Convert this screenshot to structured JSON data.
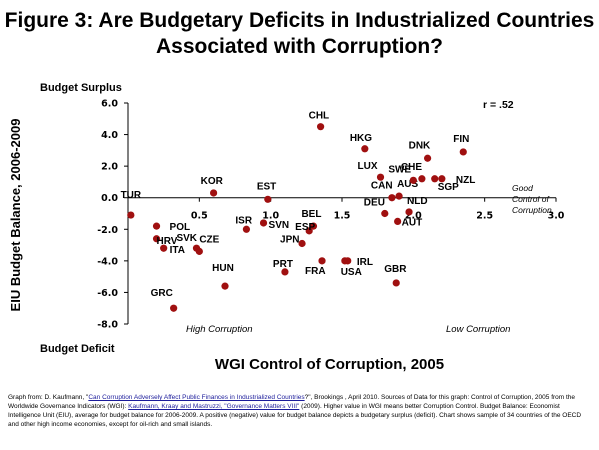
{
  "chart_data": {
    "type": "scatter",
    "title": "Figure 3: Are Budgetary Deficits in Industrialized Countries Associated with Corruption?",
    "xlabel": "WGI Control of Corruption, 2005",
    "ylabel": "EIU Budget Balance, 2006-2009",
    "xlim": [
      0,
      3.0
    ],
    "ylim": [
      -8.0,
      6.0
    ],
    "x_ticks": [
      "0.5",
      "1.0",
      "1.5",
      "2.0",
      "2.5",
      "3.0"
    ],
    "x_tick_values": [
      0.5,
      1.0,
      1.5,
      2.0,
      2.5,
      3.0
    ],
    "y_ticks": [
      "6.0",
      "4.0",
      "2.0",
      "0.0",
      "-2.0",
      "-4.0",
      "-6.0",
      "-8.0"
    ],
    "y_tick_values": [
      6,
      4,
      2,
      0,
      -2,
      -4,
      -6,
      -8
    ],
    "grid": false,
    "marker_color": "#a01010",
    "annotation_r": "r = .52",
    "top_label": "Budget Surplus",
    "bottom_label": "Budget Deficit",
    "high_corruption_label": "High Corruption",
    "low_corruption_label": "Low Corruption",
    "good_control_label": "Good Control of Corruption",
    "points": [
      {
        "label": "TUR",
        "x": 0.02,
        "y": -1.1
      },
      {
        "label": "POL",
        "x": 0.2,
        "y": -1.8
      },
      {
        "label": "HRV",
        "x": 0.2,
        "y": -2.6
      },
      {
        "label": "ITA",
        "x": 0.25,
        "y": -3.2
      },
      {
        "label": "GRC",
        "x": 0.32,
        "y": -7.0
      },
      {
        "label": "SVK",
        "x": 0.48,
        "y": -3.2
      },
      {
        "label": "CZE",
        "x": 0.5,
        "y": -3.4
      },
      {
        "label": "KOR",
        "x": 0.6,
        "y": 0.3
      },
      {
        "label": "HUN",
        "x": 0.68,
        "y": -5.6
      },
      {
        "label": "ISR",
        "x": 0.83,
        "y": -2.0
      },
      {
        "label": "EST",
        "x": 0.98,
        "y": -0.1
      },
      {
        "label": "SVN",
        "x": 0.95,
        "y": -1.6
      },
      {
        "label": "PRT",
        "x": 1.1,
        "y": -4.7
      },
      {
        "label": "CHL",
        "x": 1.35,
        "y": 4.5
      },
      {
        "label": "BEL",
        "x": 1.3,
        "y": -1.8
      },
      {
        "label": "ESP",
        "x": 1.27,
        "y": -2.1
      },
      {
        "label": "JPN",
        "x": 1.22,
        "y": -2.9
      },
      {
        "label": "FRA",
        "x": 1.36,
        "y": -4.0
      },
      {
        "label": "IRL",
        "x": 1.52,
        "y": -4.0
      },
      {
        "label": "USA",
        "x": 1.54,
        "y": -4.0
      },
      {
        "label": "HKG",
        "x": 1.66,
        "y": 3.1
      },
      {
        "label": "LUX",
        "x": 1.77,
        "y": 1.3
      },
      {
        "label": "CAN",
        "x": 1.85,
        "y": 0.0
      },
      {
        "label": "AUS",
        "x": 1.9,
        "y": 0.1
      },
      {
        "label": "DEU",
        "x": 1.8,
        "y": -1.0
      },
      {
        "label": "GBR",
        "x": 1.88,
        "y": -5.4
      },
      {
        "label": "NLD",
        "x": 1.97,
        "y": -0.9
      },
      {
        "label": "AUT",
        "x": 1.89,
        "y": -1.5
      },
      {
        "label": "SWE",
        "x": 2.0,
        "y": 1.1
      },
      {
        "label": "CHE",
        "x": 2.06,
        "y": 1.2
      },
      {
        "label": "DNK",
        "x": 2.1,
        "y": 2.5
      },
      {
        "label": "SGP",
        "x": 2.15,
        "y": 1.2
      },
      {
        "label": "NZL",
        "x": 2.2,
        "y": 1.2
      },
      {
        "label": "FIN",
        "x": 2.35,
        "y": 2.9
      }
    ]
  },
  "source": {
    "p1": "Graph from: D. Kaufmann, \"",
    "link1": "Can Corruption Adversely Affect Public Finances in Industrialized Countries",
    "p2": "?\", Brookings , April 2010. Sources of Data for this graph: Control of Corruption, 2005 from the Worldwide Governance Indicators (WGI): ",
    "link2": "Kaufmann, Kraay and Mastruzzi, \"Governance Matters VIII\"",
    "p3": " (2009). Higher value in WGI means better Corruption Control. Budget Balance: Economist Intelligence Unit (EIU), average for budget balance for 2006-2009. A positive (negative) value for budget balance depicts a budgetary surplus (deficit). Chart shows sample of 34 countries of the OECD and other high income economies, except for oil-rich and small islands."
  }
}
